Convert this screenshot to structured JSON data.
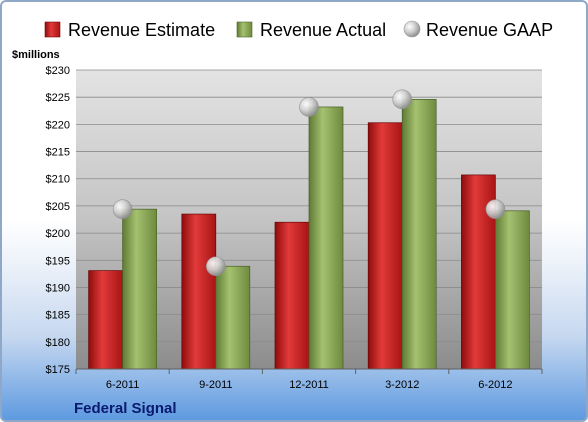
{
  "chart_data": {
    "type": "bar",
    "title": "Federal Signal",
    "ylabel": "$millions",
    "categories": [
      "6-2011",
      "9-2011",
      "12-2011",
      "3-2012",
      "6-2012"
    ],
    "series": [
      {
        "name": "Revenue Estimate",
        "kind": "bar",
        "color": "#cc1f1f",
        "values": [
          193.1,
          203.5,
          202.0,
          220.3,
          210.7
        ]
      },
      {
        "name": "Revenue Actual",
        "kind": "bar",
        "color": "#8cab58",
        "values": [
          204.4,
          193.9,
          223.2,
          224.6,
          204.1
        ]
      },
      {
        "name": "Revenue GAAP",
        "kind": "marker",
        "color": "#b8b8b8",
        "values": [
          204.4,
          193.9,
          223.2,
          224.6,
          204.4
        ]
      }
    ],
    "ylim": [
      175,
      230
    ],
    "ytick_step": 5,
    "tick_prefix": "$",
    "grid": true,
    "legend_position": "top"
  }
}
